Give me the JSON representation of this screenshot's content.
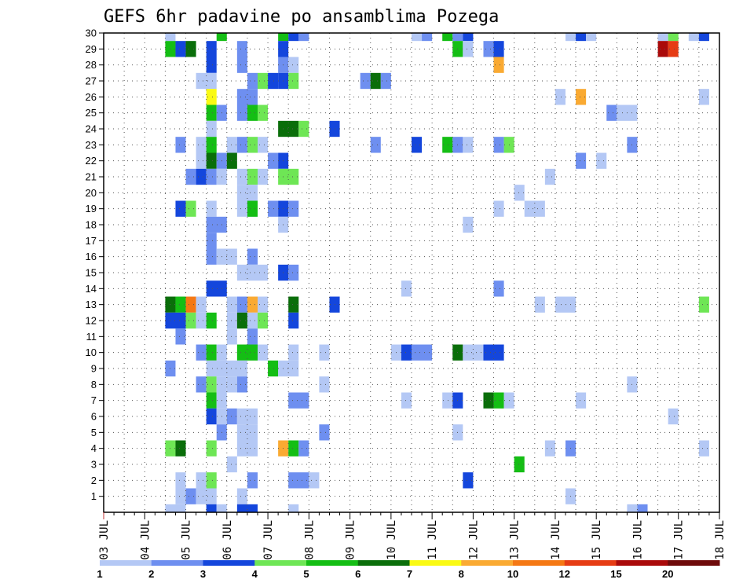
{
  "chart_data": {
    "type": "heatmap",
    "title": "GEFS 6hr padavine po ansamblima Pozega",
    "xlabel": "",
    "ylabel": "",
    "x_range": [
      0,
      60
    ],
    "y_range": [
      0,
      30
    ],
    "x_ticks": [
      {
        "pos": 0,
        "label": "03 JUL"
      },
      {
        "pos": 4,
        "label": "04 JUL"
      },
      {
        "pos": 8,
        "label": "05 JUL"
      },
      {
        "pos": 12,
        "label": "06 JUL"
      },
      {
        "pos": 16,
        "label": "07 JUL"
      },
      {
        "pos": 20,
        "label": "08 JUL"
      },
      {
        "pos": 24,
        "label": "09 JUL"
      },
      {
        "pos": 28,
        "label": "10 JUL"
      },
      {
        "pos": 32,
        "label": "11 JUL"
      },
      {
        "pos": 36,
        "label": "12 JUL"
      },
      {
        "pos": 40,
        "label": "13 JUL"
      },
      {
        "pos": 44,
        "label": "14 JUL"
      },
      {
        "pos": 48,
        "label": "15 JUL"
      },
      {
        "pos": 52,
        "label": "16 JUL"
      },
      {
        "pos": 56,
        "label": "17 JUL"
      },
      {
        "pos": 60,
        "label": "18 JUL"
      }
    ],
    "y_ticks": [
      {
        "pos": 1,
        "label": "1"
      },
      {
        "pos": 2,
        "label": "2"
      },
      {
        "pos": 3,
        "label": "3"
      },
      {
        "pos": 4,
        "label": "4"
      },
      {
        "pos": 5,
        "label": "5"
      },
      {
        "pos": 6,
        "label": "6"
      },
      {
        "pos": 7,
        "label": "7"
      },
      {
        "pos": 8,
        "label": "8"
      },
      {
        "pos": 9,
        "label": "9"
      },
      {
        "pos": 10,
        "label": "10"
      },
      {
        "pos": 11,
        "label": "11"
      },
      {
        "pos": 12,
        "label": "12"
      },
      {
        "pos": 13,
        "label": "13"
      },
      {
        "pos": 14,
        "label": "14"
      },
      {
        "pos": 15,
        "label": "15"
      },
      {
        "pos": 16,
        "label": "16"
      },
      {
        "pos": 17,
        "label": "17"
      },
      {
        "pos": 18,
        "label": "18"
      },
      {
        "pos": 19,
        "label": "19"
      },
      {
        "pos": 20,
        "label": "20"
      },
      {
        "pos": 21,
        "label": "21"
      },
      {
        "pos": 22,
        "label": "22"
      },
      {
        "pos": 23,
        "label": "23"
      },
      {
        "pos": 24,
        "label": "24"
      },
      {
        "pos": 25,
        "label": "25"
      },
      {
        "pos": 26,
        "label": "26"
      },
      {
        "pos": 27,
        "label": "27"
      },
      {
        "pos": 28,
        "label": "28"
      },
      {
        "pos": 29,
        "label": "29"
      },
      {
        "pos": 30,
        "label": "30"
      }
    ],
    "grid": true,
    "legend": {
      "placement": "bottom",
      "labels": [
        "1",
        "2",
        "3",
        "4",
        "5",
        "6",
        "7",
        "8",
        "10",
        "12",
        "15",
        "20"
      ],
      "colors": [
        "#b4c8f5",
        "#6e8ff0",
        "#1446dc",
        "#6ee655",
        "#14be14",
        "#0a6e0a",
        "#fafa14",
        "#faaa32",
        "#f57814",
        "#e63c14",
        "#aa0a0a",
        "#6e0a0a"
      ]
    },
    "cell_format": "[x_start, x_end, member, color_index]",
    "cells": [
      [
        6,
        7,
        30,
        0
      ],
      [
        11,
        12,
        30,
        4
      ],
      [
        17,
        18,
        30,
        4
      ],
      [
        18,
        19,
        30,
        2
      ],
      [
        19,
        20,
        30,
        1
      ],
      [
        30,
        31,
        30,
        0
      ],
      [
        31,
        32,
        30,
        1
      ],
      [
        33,
        34,
        30,
        4
      ],
      [
        34,
        35,
        30,
        1
      ],
      [
        35,
        36,
        30,
        2
      ],
      [
        45,
        46,
        30,
        0
      ],
      [
        46,
        47,
        30,
        2
      ],
      [
        47,
        48,
        30,
        0
      ],
      [
        54,
        55,
        30,
        0
      ],
      [
        55,
        56,
        30,
        3
      ],
      [
        57,
        58,
        30,
        0
      ],
      [
        58,
        59,
        30,
        2
      ],
      [
        6,
        7,
        29,
        4
      ],
      [
        7,
        8,
        29,
        2
      ],
      [
        8,
        9,
        29,
        5
      ],
      [
        10,
        11,
        29,
        2
      ],
      [
        13,
        14,
        29,
        1
      ],
      [
        17,
        18,
        29,
        2
      ],
      [
        34,
        35,
        29,
        4
      ],
      [
        35,
        36,
        29,
        0
      ],
      [
        37,
        38,
        29,
        1
      ],
      [
        38,
        39,
        29,
        2
      ],
      [
        54,
        55,
        29,
        10
      ],
      [
        55,
        56,
        29,
        9
      ],
      [
        10,
        11,
        28,
        2
      ],
      [
        13,
        14,
        28,
        1
      ],
      [
        17,
        18,
        28,
        1
      ],
      [
        18,
        19,
        28,
        0
      ],
      [
        38,
        39,
        28,
        7
      ],
      [
        9,
        11,
        27,
        0
      ],
      [
        14,
        15,
        27,
        1
      ],
      [
        15,
        16,
        27,
        3
      ],
      [
        16,
        17,
        27,
        2
      ],
      [
        17,
        18,
        27,
        2
      ],
      [
        18,
        19,
        27,
        3
      ],
      [
        25,
        26,
        27,
        1
      ],
      [
        26,
        27,
        27,
        5
      ],
      [
        27,
        28,
        27,
        1
      ],
      [
        10,
        11,
        26,
        6
      ],
      [
        13,
        15,
        26,
        1
      ],
      [
        44,
        45,
        26,
        0
      ],
      [
        46,
        47,
        26,
        7
      ],
      [
        58,
        59,
        26,
        0
      ],
      [
        10,
        11,
        25,
        4
      ],
      [
        11,
        12,
        25,
        1
      ],
      [
        13,
        14,
        25,
        1
      ],
      [
        14,
        15,
        25,
        4
      ],
      [
        15,
        16,
        25,
        3
      ],
      [
        49,
        50,
        25,
        1
      ],
      [
        50,
        52,
        25,
        0
      ],
      [
        10,
        11,
        24,
        0
      ],
      [
        17,
        19,
        24,
        5
      ],
      [
        19,
        20,
        24,
        3
      ],
      [
        22,
        23,
        24,
        2
      ],
      [
        7,
        8,
        23,
        1
      ],
      [
        9,
        10,
        23,
        0
      ],
      [
        10,
        11,
        23,
        4
      ],
      [
        12,
        13,
        23,
        0
      ],
      [
        13,
        14,
        23,
        1
      ],
      [
        14,
        15,
        23,
        3
      ],
      [
        15,
        16,
        23,
        0
      ],
      [
        26,
        27,
        23,
        1
      ],
      [
        30,
        31,
        23,
        2
      ],
      [
        33,
        34,
        23,
        4
      ],
      [
        34,
        35,
        23,
        1
      ],
      [
        35,
        36,
        23,
        0
      ],
      [
        38,
        39,
        23,
        1
      ],
      [
        39,
        40,
        23,
        3
      ],
      [
        51,
        52,
        23,
        1
      ],
      [
        9,
        10,
        22,
        0
      ],
      [
        10,
        11,
        22,
        5
      ],
      [
        11,
        12,
        22,
        1
      ],
      [
        12,
        13,
        22,
        5
      ],
      [
        16,
        17,
        22,
        1
      ],
      [
        17,
        18,
        22,
        2
      ],
      [
        46,
        47,
        22,
        1
      ],
      [
        48,
        49,
        22,
        0
      ],
      [
        8,
        9,
        21,
        1
      ],
      [
        9,
        10,
        21,
        2
      ],
      [
        10,
        11,
        21,
        1
      ],
      [
        11,
        12,
        21,
        0
      ],
      [
        13,
        14,
        21,
        0
      ],
      [
        14,
        15,
        21,
        3
      ],
      [
        15,
        16,
        21,
        0
      ],
      [
        17,
        19,
        21,
        3
      ],
      [
        43,
        44,
        21,
        0
      ],
      [
        13,
        15,
        20,
        0
      ],
      [
        40,
        41,
        20,
        0
      ],
      [
        7,
        8,
        19,
        2
      ],
      [
        8,
        9,
        19,
        3
      ],
      [
        10,
        11,
        19,
        0
      ],
      [
        13,
        15,
        19,
        0
      ],
      [
        14,
        15,
        19,
        4
      ],
      [
        16,
        17,
        19,
        1
      ],
      [
        17,
        18,
        19,
        2
      ],
      [
        18,
        19,
        19,
        1
      ],
      [
        38,
        39,
        19,
        0
      ],
      [
        41,
        43,
        19,
        0
      ],
      [
        10,
        12,
        18,
        1
      ],
      [
        17,
        18,
        18,
        0
      ],
      [
        35,
        36,
        18,
        0
      ],
      [
        10,
        11,
        17,
        1
      ],
      [
        10,
        11,
        16,
        1
      ],
      [
        11,
        13,
        16,
        0
      ],
      [
        14,
        15,
        16,
        1
      ],
      [
        13,
        16,
        15,
        0
      ],
      [
        17,
        18,
        15,
        2
      ],
      [
        18,
        19,
        15,
        1
      ],
      [
        10,
        12,
        14,
        2
      ],
      [
        29,
        30,
        14,
        0
      ],
      [
        38,
        39,
        14,
        1
      ],
      [
        6,
        7,
        13,
        5
      ],
      [
        7,
        8,
        13,
        4
      ],
      [
        8,
        9,
        13,
        8
      ],
      [
        9,
        10,
        13,
        0
      ],
      [
        12,
        13,
        13,
        0
      ],
      [
        13,
        14,
        13,
        1
      ],
      [
        14,
        15,
        13,
        7
      ],
      [
        15,
        16,
        13,
        0
      ],
      [
        18,
        19,
        13,
        5
      ],
      [
        22,
        23,
        13,
        2
      ],
      [
        42,
        43,
        13,
        0
      ],
      [
        44,
        46,
        13,
        0
      ],
      [
        58,
        59,
        13,
        3
      ],
      [
        6,
        8,
        12,
        2
      ],
      [
        8,
        9,
        12,
        3
      ],
      [
        9,
        10,
        12,
        0
      ],
      [
        10,
        11,
        12,
        4
      ],
      [
        12,
        13,
        12,
        0
      ],
      [
        13,
        14,
        12,
        5
      ],
      [
        14,
        15,
        12,
        0
      ],
      [
        15,
        16,
        12,
        3
      ],
      [
        18,
        19,
        12,
        2
      ],
      [
        7,
        8,
        11,
        1
      ],
      [
        12,
        13,
        11,
        0
      ],
      [
        14,
        15,
        11,
        1
      ],
      [
        9,
        10,
        10,
        1
      ],
      [
        10,
        11,
        10,
        4
      ],
      [
        11,
        12,
        10,
        0
      ],
      [
        13,
        15,
        10,
        4
      ],
      [
        15,
        16,
        10,
        0
      ],
      [
        18,
        19,
        10,
        0
      ],
      [
        21,
        22,
        10,
        0
      ],
      [
        28,
        29,
        10,
        0
      ],
      [
        29,
        30,
        10,
        2
      ],
      [
        30,
        32,
        10,
        1
      ],
      [
        34,
        35,
        10,
        5
      ],
      [
        35,
        37,
        10,
        0
      ],
      [
        37,
        39,
        10,
        2
      ],
      [
        6,
        7,
        9,
        1
      ],
      [
        10,
        14,
        9,
        0
      ],
      [
        16,
        17,
        9,
        4
      ],
      [
        17,
        19,
        9,
        0
      ],
      [
        9,
        10,
        8,
        1
      ],
      [
        10,
        11,
        8,
        3
      ],
      [
        11,
        12,
        8,
        0
      ],
      [
        12,
        13,
        8,
        0
      ],
      [
        13,
        14,
        8,
        1
      ],
      [
        21,
        22,
        8,
        0
      ],
      [
        51,
        52,
        8,
        0
      ],
      [
        10,
        11,
        7,
        4
      ],
      [
        11,
        12,
        7,
        0
      ],
      [
        18,
        20,
        7,
        1
      ],
      [
        29,
        30,
        7,
        0
      ],
      [
        33,
        34,
        7,
        0
      ],
      [
        34,
        35,
        7,
        2
      ],
      [
        37,
        38,
        7,
        5
      ],
      [
        38,
        39,
        7,
        4
      ],
      [
        39,
        40,
        7,
        0
      ],
      [
        46,
        47,
        7,
        0
      ],
      [
        10,
        11,
        6,
        2
      ],
      [
        11,
        12,
        6,
        0
      ],
      [
        12,
        13,
        6,
        1
      ],
      [
        13,
        15,
        6,
        0
      ],
      [
        55,
        56,
        6,
        0
      ],
      [
        11,
        12,
        5,
        1
      ],
      [
        13,
        15,
        5,
        0
      ],
      [
        21,
        22,
        5,
        1
      ],
      [
        34,
        35,
        5,
        0
      ],
      [
        6,
        7,
        4,
        3
      ],
      [
        7,
        8,
        4,
        5
      ],
      [
        10,
        11,
        4,
        3
      ],
      [
        13,
        15,
        4,
        0
      ],
      [
        17,
        18,
        4,
        7
      ],
      [
        18,
        19,
        4,
        4
      ],
      [
        19,
        20,
        4,
        1
      ],
      [
        43,
        44,
        4,
        0
      ],
      [
        45,
        46,
        4,
        1
      ],
      [
        58,
        59,
        4,
        0
      ],
      [
        12,
        13,
        3,
        0
      ],
      [
        40,
        41,
        3,
        4
      ],
      [
        7,
        8,
        2,
        0
      ],
      [
        9,
        10,
        2,
        0
      ],
      [
        10,
        11,
        2,
        3
      ],
      [
        14,
        15,
        2,
        1
      ],
      [
        18,
        20,
        2,
        1
      ],
      [
        20,
        21,
        2,
        0
      ],
      [
        35,
        36,
        2,
        2
      ],
      [
        7,
        8,
        1,
        0
      ],
      [
        8,
        9,
        1,
        1
      ],
      [
        9,
        11,
        1,
        0
      ],
      [
        13,
        14,
        1,
        0
      ],
      [
        45,
        46,
        1,
        0
      ],
      [
        6,
        8,
        0,
        0
      ],
      [
        10,
        11,
        0,
        2
      ],
      [
        11,
        12,
        0,
        0
      ],
      [
        13,
        15,
        0,
        2
      ],
      [
        18,
        19,
        0,
        0
      ],
      [
        51,
        52,
        0,
        0
      ],
      [
        52,
        53,
        0,
        1
      ]
    ]
  }
}
